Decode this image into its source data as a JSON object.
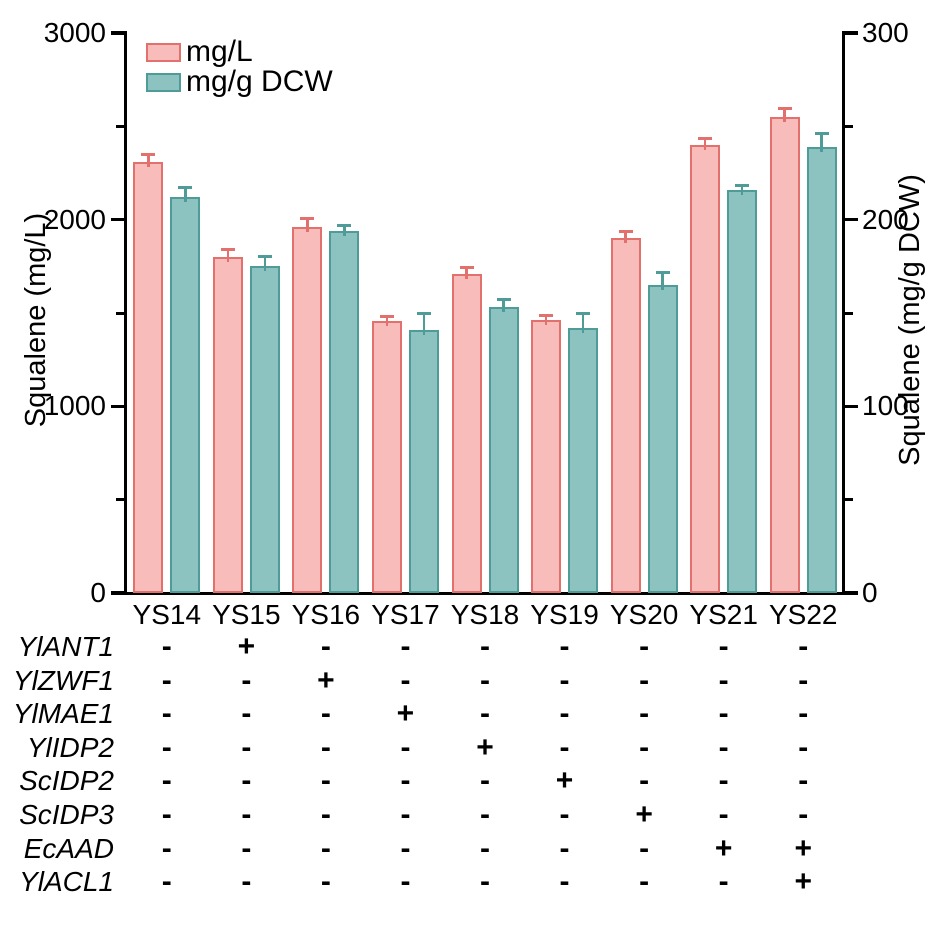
{
  "chart_data": {
    "type": "bar",
    "title": "",
    "categories": [
      "YS14",
      "YS15",
      "YS16",
      "YS17",
      "YS18",
      "YS19",
      "YS20",
      "YS21",
      "YS22"
    ],
    "series": [
      {
        "name": "mg/L",
        "axis": "left",
        "fill": "#F8BCBB",
        "border": "#E2716E",
        "values": [
          2310,
          1800,
          1960,
          1455,
          1710,
          1460,
          1900,
          2400,
          2550
        ],
        "errors": [
          40,
          40,
          45,
          25,
          35,
          25,
          35,
          35,
          45
        ]
      },
      {
        "name": "mg/g DCW",
        "axis": "right",
        "fill": "#8CC3C0",
        "border": "#4E9B98",
        "values": [
          212,
          175,
          194,
          141,
          153,
          142,
          165,
          216,
          239
        ],
        "errors": [
          5,
          5.5,
          3,
          9,
          4.5,
          8,
          6.5,
          2.5,
          7
        ]
      }
    ],
    "axes": {
      "left": {
        "title": "Squalene (mg/L)",
        "range": [
          0,
          3000
        ],
        "major_ticks": [
          0,
          1000,
          2000,
          3000
        ],
        "minor_ticks": [
          500,
          1500,
          2500
        ]
      },
      "right": {
        "title": "Squalene (mg/g DCW)",
        "range": [
          0,
          300
        ],
        "major_ticks": [
          0,
          100,
          200,
          300
        ],
        "minor_ticks": [
          50,
          150,
          250
        ]
      }
    },
    "legend_position": "top-left",
    "grid": false,
    "axis_color": "#000000",
    "background": "#FFFFFF"
  },
  "gene_table": {
    "rows": [
      {
        "name": "YlANT1",
        "values": [
          "-",
          "+",
          "-",
          "-",
          "-",
          "-",
          "-",
          "-",
          "-"
        ]
      },
      {
        "name": "YlZWF1",
        "values": [
          "-",
          "-",
          "+",
          "-",
          "-",
          "-",
          "-",
          "-",
          "-"
        ]
      },
      {
        "name": "YlMAE1",
        "values": [
          "-",
          "-",
          "-",
          "+",
          "-",
          "-",
          "-",
          "-",
          "-"
        ]
      },
      {
        "name": "YlIDP2",
        "values": [
          "-",
          "-",
          "-",
          "-",
          "+",
          "-",
          "-",
          "-",
          "-"
        ]
      },
      {
        "name": "ScIDP2",
        "values": [
          "-",
          "-",
          "-",
          "-",
          "-",
          "+",
          "-",
          "-",
          "-"
        ]
      },
      {
        "name": "ScIDP3",
        "values": [
          "-",
          "-",
          "-",
          "-",
          "-",
          "-",
          "+",
          "-",
          "-"
        ]
      },
      {
        "name": "EcAAD",
        "values": [
          "-",
          "-",
          "-",
          "-",
          "-",
          "-",
          "-",
          "+",
          "+"
        ]
      },
      {
        "name": "YlACL1",
        "values": [
          "-",
          "-",
          "-",
          "-",
          "-",
          "-",
          "-",
          "-",
          "+"
        ]
      }
    ]
  }
}
